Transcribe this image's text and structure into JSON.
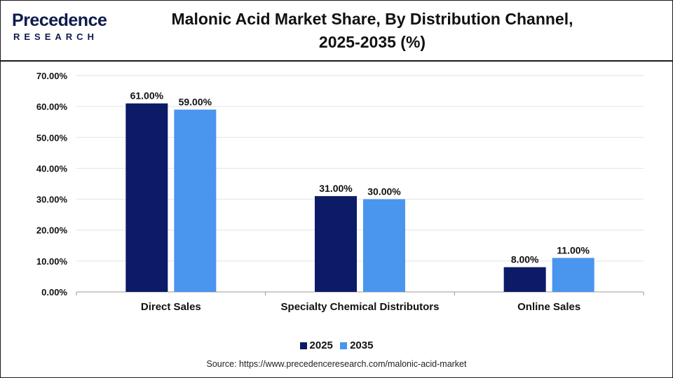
{
  "brand": {
    "logo_top": "recedence",
    "logo_letter": "P",
    "logo_bottom": "RESEARCH"
  },
  "title_line1": "Malonic Acid Market Share, By Distribution Channel,",
  "title_line2": "2025-2035 (%)",
  "source": "Source: https://www.precedenceresearch.com/malonic-acid-market",
  "chart_data": {
    "type": "bar",
    "title": "Malonic Acid Market Share, By Distribution Channel, 2025-2035 (%)",
    "categories": [
      "Direct Sales",
      "Specialty Chemical Distributors",
      "Online Sales"
    ],
    "series": [
      {
        "name": "2025",
        "values": [
          61.0,
          31.0,
          8.0
        ],
        "labels": [
          "61.00%",
          "31.00%",
          "8.00%"
        ],
        "color": "#0d1a66"
      },
      {
        "name": "2035",
        "values": [
          59.0,
          30.0,
          11.0
        ],
        "labels": [
          "59.00%",
          "30.00%",
          "11.00%"
        ],
        "color": "#4a95ee"
      }
    ],
    "yticks": [
      "0.00%",
      "10.00%",
      "20.00%",
      "30.00%",
      "40.00%",
      "50.00%",
      "60.00%",
      "70.00%"
    ],
    "ylim": [
      0,
      70
    ],
    "grid": true,
    "legend_position": "bottom"
  }
}
